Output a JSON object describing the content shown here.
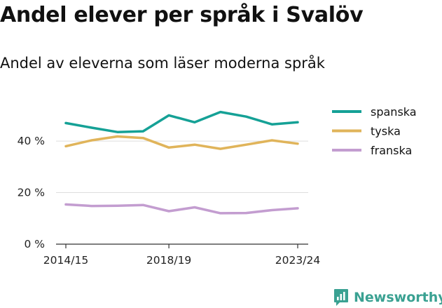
{
  "title": "Andel elever per språk i Svalöv",
  "subtitle": "Andel av eleverna som läser moderna språk",
  "brand": {
    "name": "Newsworthy",
    "icon": "bar-chart-logo-icon",
    "color": "#3aa192"
  },
  "chart_data": {
    "type": "line",
    "x": [
      "2014/15",
      "2015/16",
      "2016/17",
      "2017/18",
      "2018/19",
      "2019/20",
      "2020/21",
      "2021/22",
      "2022/23",
      "2023/24"
    ],
    "x_tick_labels": [
      "2014/15",
      "2018/19",
      "2023/24"
    ],
    "y_ticks": [
      0,
      20,
      40
    ],
    "y_tick_labels": [
      "0 %",
      "20 %",
      "40 %"
    ],
    "ylim": [
      0,
      55
    ],
    "grid": "horizontal",
    "legend_position": "top-right",
    "series": [
      {
        "name": "spanska",
        "color": "#15a196",
        "values": [
          47,
          45.2,
          43.5,
          43.8,
          50,
          47.3,
          51.3,
          49.5,
          46.5,
          47.3
        ]
      },
      {
        "name": "tyska",
        "color": "#e0b45a",
        "values": [
          38,
          40.3,
          41.8,
          41.2,
          37.5,
          38.6,
          37,
          38.6,
          40.3,
          39
        ]
      },
      {
        "name": "franska",
        "color": "#c39dd0",
        "values": [
          15.4,
          14.8,
          14.9,
          15.2,
          12.8,
          14.3,
          12,
          12.1,
          13.2,
          13.9
        ]
      }
    ]
  }
}
